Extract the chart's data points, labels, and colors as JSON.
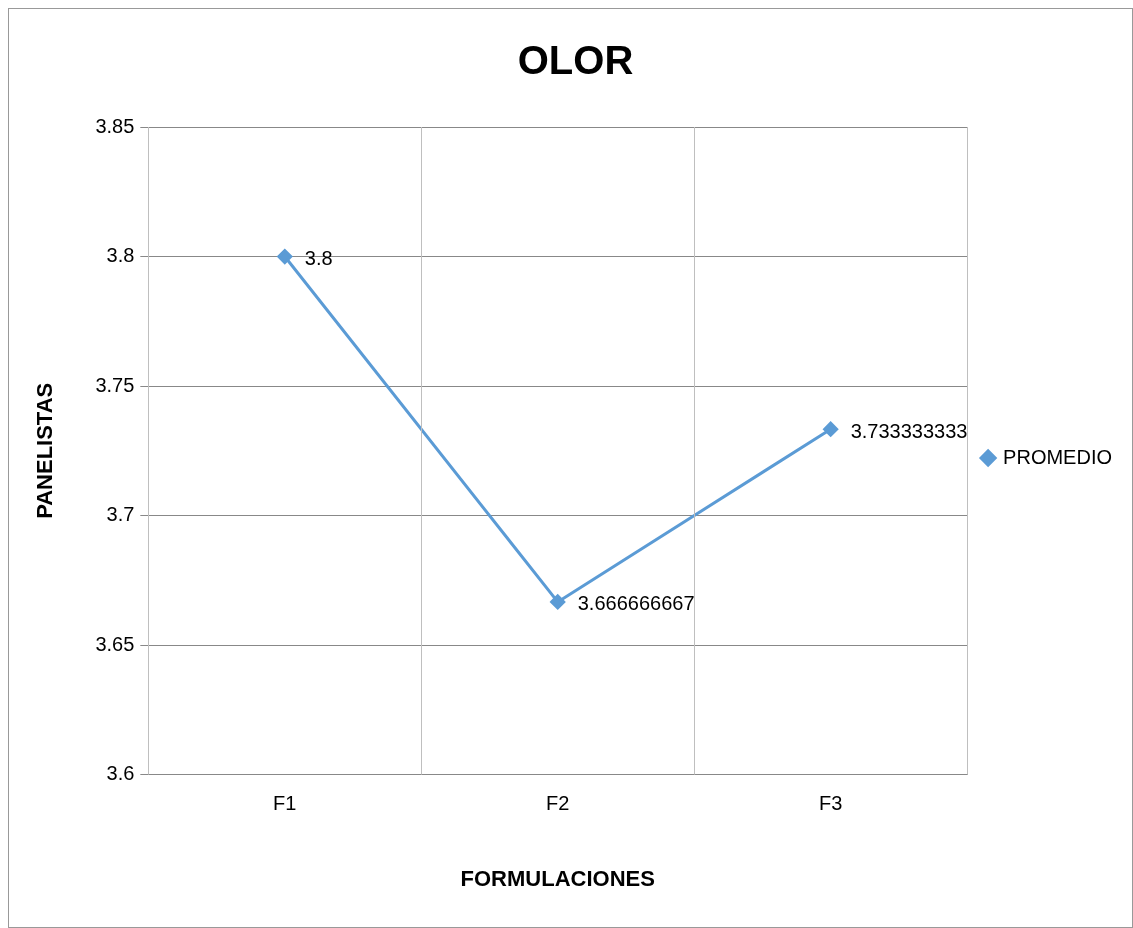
{
  "chart_data": {
    "type": "line",
    "title": "OLOR",
    "xlabel": "FORMULACIONES",
    "ylabel": "PANELISTAS",
    "categories": [
      "F1",
      "F2",
      "F3"
    ],
    "series": [
      {
        "name": "PROMEDIO",
        "color": "#5b9bd5",
        "values": [
          3.8,
          3.666666667,
          3.733333333
        ]
      }
    ],
    "ylim": [
      3.6,
      3.85
    ],
    "yticks": [
      3.6,
      3.65,
      3.7,
      3.75,
      3.8,
      3.85
    ],
    "grid": true,
    "legend": "right",
    "marker": "diamond",
    "line_style": "solid",
    "data_labels": true
  }
}
